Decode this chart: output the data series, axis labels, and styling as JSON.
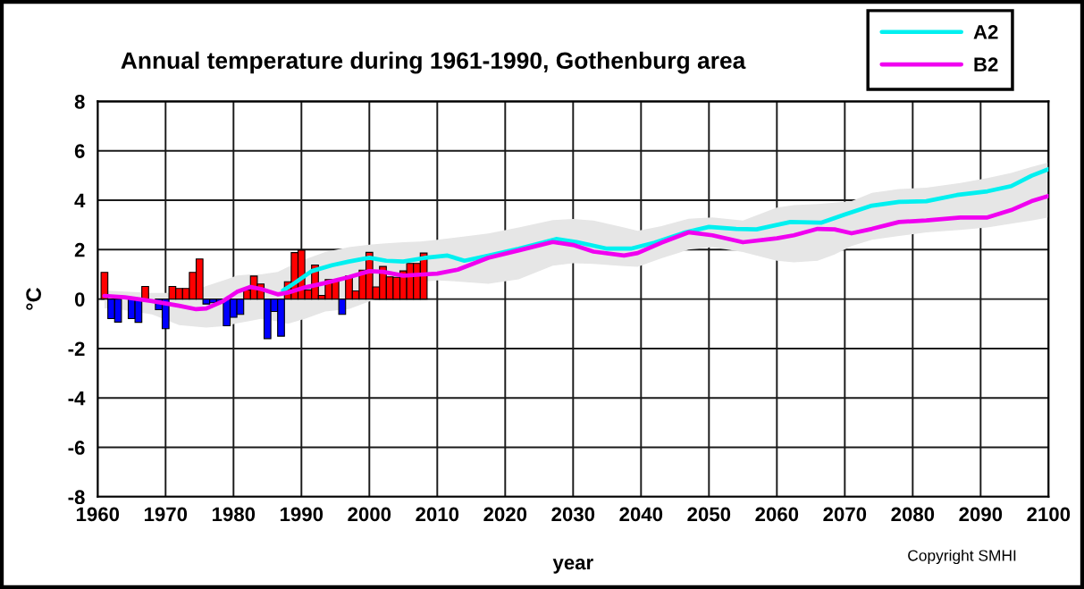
{
  "chart_data": {
    "type": "bar",
    "title": "Annual temperature during 1961-1990, Gothenburg area",
    "xlabel": "year",
    "ylabel": "°C",
    "xlim": [
      1960,
      2100
    ],
    "xticks": [
      1960,
      1970,
      1980,
      1990,
      2000,
      2010,
      2020,
      2030,
      2040,
      2050,
      2060,
      2070,
      2080,
      2090,
      2100
    ],
    "ylim": [
      -8,
      8
    ],
    "yticks": [
      -8,
      -6,
      -4,
      -2,
      0,
      2,
      4,
      6,
      8
    ],
    "grid": true,
    "legend": "top right",
    "annotations": [
      "Copyright SMHI"
    ],
    "series": [
      {
        "x": [
          1961,
          1962,
          1963,
          1964,
          1965,
          1966,
          1967,
          1968,
          1969,
          1970,
          1971,
          1972,
          1973,
          1974,
          1975,
          1976,
          1977,
          1978,
          1979,
          1980,
          1981,
          1982,
          1983,
          1984,
          1985,
          1986,
          1987,
          1988,
          1989,
          1990,
          1991,
          1992,
          1993,
          1994,
          1995,
          1996,
          1997,
          1998,
          1999,
          2000,
          2001,
          2002,
          2003,
          2004,
          2005,
          2006,
          2007,
          2008
        ],
        "values": [
          1.08,
          -0.79,
          -0.93,
          null,
          -0.79,
          -0.94,
          0.51,
          null,
          -0.43,
          -1.2,
          0.51,
          0.43,
          0.43,
          1.08,
          1.62,
          -0.2,
          -0.15,
          -0.1,
          -1.08,
          -0.74,
          -0.62,
          0.37,
          0.93,
          0.61,
          -1.6,
          -0.5,
          -1.5,
          0.7,
          1.88,
          1.98,
          0.37,
          1.38,
          0.15,
          0.79,
          0.79,
          -0.62,
          0.93,
          0.33,
          1.17,
          1.89,
          0.49,
          1.32,
          0.9,
          0.88,
          1.14,
          1.44,
          1.44,
          1.86
        ],
        "colors": [
          "#ff0000",
          "#0000ff",
          "#0000ff",
          null,
          "#0000ff",
          "#0000ff",
          "#ff0000",
          null,
          "#0000ff",
          "#0000ff",
          "#ff0000",
          "#ff0000",
          "#ff0000",
          "#ff0000",
          "#ff0000",
          "#0000ff",
          "#0000ff",
          "#0000ff",
          "#0000ff",
          "#0000ff",
          "#0000ff",
          "#ff0000",
          "#ff0000",
          "#ff0000",
          "#0000ff",
          "#0000ff",
          "#0000ff",
          "#ff0000",
          "#ff0000",
          "#ff0000",
          "#ff0000",
          "#ff0000",
          "#ff0000",
          "#ff0000",
          "#ff0000",
          "#0000ff",
          "#ff0000",
          "#ff0000",
          "#ff0000",
          "#ff0000",
          "#ff0000",
          "#ff0000",
          "#ff0000",
          "#ff0000",
          "#ff0000",
          "#ff0000",
          "#ff0000",
          "#ff0000"
        ]
      },
      {
        "type": "line",
        "name": "A2",
        "color": "#00f0f0",
        "x": [
          1987.3,
          1989,
          1991.5,
          1994.5,
          1997,
          2000,
          2002.5,
          2005,
          2008,
          2011.5,
          2014,
          2017.5,
          2022,
          2027.5,
          2030.5,
          2035,
          2038.5,
          2042,
          2046.5,
          2050,
          2054,
          2057,
          2062,
          2066.5,
          2070,
          2074,
          2078,
          2082,
          2086.5,
          2091,
          2094.5,
          2097.5,
          2100
        ],
        "values": [
          0.35,
          0.65,
          1.13,
          1.37,
          1.52,
          1.67,
          1.55,
          1.52,
          1.66,
          1.76,
          1.55,
          1.76,
          2.04,
          2.43,
          2.31,
          2.04,
          2.04,
          2.28,
          2.7,
          2.92,
          2.84,
          2.82,
          3.12,
          3.09,
          3.42,
          3.78,
          3.93,
          3.96,
          4.21,
          4.36,
          4.57,
          4.99,
          5.26
        ]
      },
      {
        "type": "line",
        "name": "B2",
        "color": "#f000f0",
        "x": [
          1961,
          1964,
          1968,
          1972,
          1974.5,
          1976,
          1978.5,
          1980.5,
          1982.5,
          1984,
          1986.5,
          1988,
          1990.5,
          1993.5,
          1997,
          2000,
          2002,
          2005,
          2007.5,
          2010,
          2013,
          2017.5,
          2022,
          2027,
          2030,
          2033,
          2037.5,
          2039.5,
          2043,
          2047,
          2050.5,
          2055,
          2060,
          2062.5,
          2066,
          2068.5,
          2071,
          2074,
          2078,
          2082,
          2087,
          2091,
          2094.5,
          2097.5,
          2100
        ],
        "values": [
          0.13,
          0.07,
          -0.08,
          -0.27,
          -0.41,
          -0.38,
          -0.08,
          0.29,
          0.49,
          0.41,
          0.19,
          0.26,
          0.47,
          0.65,
          0.89,
          1.13,
          1.1,
          0.95,
          0.99,
          1.03,
          1.19,
          1.67,
          1.97,
          2.31,
          2.19,
          1.92,
          1.76,
          1.86,
          2.28,
          2.7,
          2.58,
          2.3,
          2.46,
          2.58,
          2.84,
          2.82,
          2.66,
          2.84,
          3.12,
          3.18,
          3.3,
          3.3,
          3.6,
          3.96,
          4.17
        ],
        "lower": [
          -0.38,
          -0.45,
          -0.62,
          -1.05,
          -1.12,
          -1.15,
          -1.1,
          -0.98,
          -0.88,
          -0.8,
          -0.9,
          -1.0,
          -0.8,
          -0.5,
          -0.4,
          -0.1,
          0.1,
          0.4,
          0.7,
          0.75,
          0.71,
          0.62,
          0.8,
          1.35,
          1.45,
          1.42,
          1.33,
          1.31,
          1.65,
          2.0,
          2.1,
          1.9,
          1.55,
          1.49,
          1.55,
          1.8,
          2.15,
          2.4,
          2.55,
          2.7,
          2.8,
          2.9,
          3.05,
          3.18,
          3.3
        ],
        "upper": [
          0.35,
          0.3,
          0.25,
          0.25,
          0.4,
          0.53,
          0.75,
          0.95,
          1.0,
          1.0,
          1.1,
          1.3,
          1.6,
          1.9,
          2.1,
          2.2,
          2.25,
          2.3,
          2.33,
          2.4,
          2.5,
          2.65,
          2.9,
          3.2,
          3.24,
          3.18,
          2.9,
          2.76,
          2.95,
          3.25,
          3.3,
          3.18,
          3.7,
          3.8,
          3.85,
          3.9,
          3.96,
          4.3,
          4.45,
          4.51,
          4.7,
          4.9,
          5.1,
          5.35,
          5.53
        ]
      }
    ]
  }
}
